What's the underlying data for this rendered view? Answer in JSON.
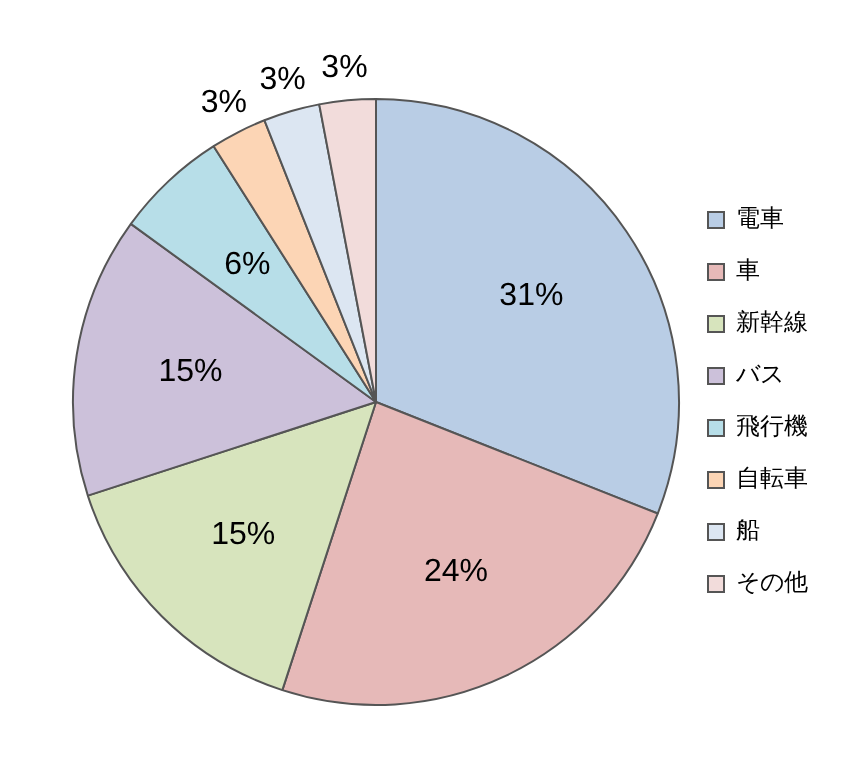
{
  "chart_data": {
    "type": "pie",
    "categories": [
      "電車",
      "車",
      "新幹線",
      "バス",
      "飛行機",
      "自転車",
      "船",
      "その他"
    ],
    "values": [
      31,
      24,
      15,
      15,
      6,
      3,
      3,
      3
    ],
    "colors": [
      "#b9cde5",
      "#e6b9b8",
      "#d7e4bd",
      "#ccc1da",
      "#b7dee8",
      "#fcd5b5",
      "#dce6f2",
      "#f2dcdb"
    ],
    "value_labels": [
      "31%",
      "24%",
      "15%",
      "15%",
      "6%",
      "3%",
      "3%",
      "3%"
    ],
    "legend": "right"
  }
}
